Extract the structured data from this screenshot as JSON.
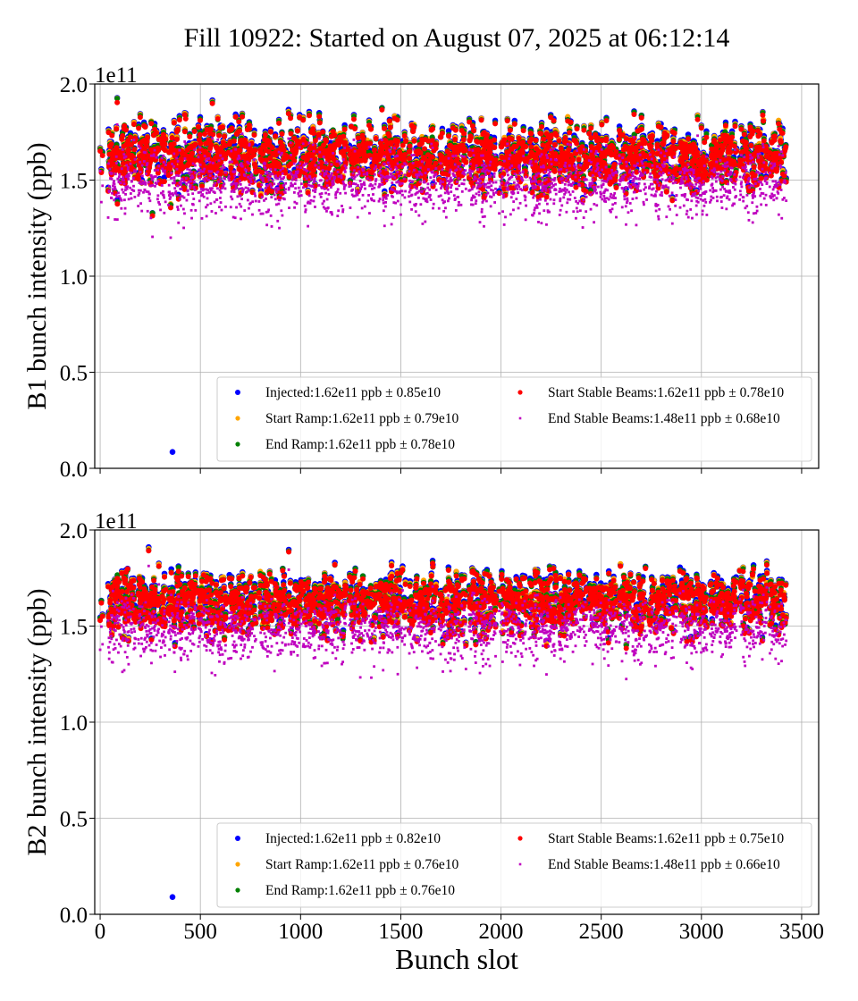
{
  "chart_data": {
    "title": "Fill 10922: Started on August 07, 2025 at 06:12:14",
    "xlabel": "Bunch slot",
    "type": "scatter",
    "x_ticks": [
      "0",
      "500",
      "1000",
      "1500",
      "2000",
      "2500",
      "3000",
      "3500"
    ],
    "xlim": [
      -27,
      3585
    ],
    "grid": true,
    "legend_placement": "lower-right",
    "panels": [
      {
        "ylabel": "B1 bunch intensity (ppb)",
        "y_scale_label": "1e11",
        "ylim": [
          0,
          2.0
        ],
        "y_ticks": [
          "0.0",
          "0.5",
          "1.0",
          "1.5",
          "2.0"
        ],
        "series": [
          {
            "name": "Injected",
            "legend": "Injected:1.62e11 ppb ± 0.85e10",
            "mean": 1.62,
            "std": 0.085,
            "color": "#0000ff",
            "outliers": [
              {
                "x": 361,
                "y": 0.085
              }
            ]
          },
          {
            "name": "Start Ramp",
            "legend": "Start Ramp:1.62e11 ppb ± 0.79e10",
            "mean": 1.62,
            "std": 0.079,
            "color": "#ffa500"
          },
          {
            "name": "End Ramp",
            "legend": "End Ramp:1.62e11 ppb ± 0.78e10",
            "mean": 1.62,
            "std": 0.078,
            "color": "#008000"
          },
          {
            "name": "Start Stable Beams",
            "legend": "Start Stable Beams:1.62e11 ppb ± 0.78e10",
            "mean": 1.62,
            "std": 0.078,
            "color": "#ff0000"
          },
          {
            "name": "End Stable Beams",
            "legend": "End Stable Beams:1.48e11 ppb ± 0.68e10",
            "mean": 1.48,
            "std": 0.068,
            "color": "#bf00bf"
          }
        ]
      },
      {
        "ylabel": "B2 bunch intensity (ppb)",
        "y_scale_label": "1e11",
        "ylim": [
          0,
          2.0
        ],
        "y_ticks": [
          "0.0",
          "0.5",
          "1.0",
          "1.5",
          "2.0"
        ],
        "series": [
          {
            "name": "Injected",
            "legend": "Injected:1.62e11 ppb ± 0.82e10",
            "mean": 1.62,
            "std": 0.082,
            "color": "#0000ff",
            "outliers": [
              {
                "x": 361,
                "y": 0.09
              }
            ]
          },
          {
            "name": "Start Ramp",
            "legend": "Start Ramp:1.62e11 ppb ± 0.76e10",
            "mean": 1.62,
            "std": 0.076,
            "color": "#ffa500"
          },
          {
            "name": "End Ramp",
            "legend": "End Ramp:1.62e11 ppb ± 0.76e10",
            "mean": 1.62,
            "std": 0.076,
            "color": "#008000"
          },
          {
            "name": "Start Stable Beams",
            "legend": "Start Stable Beams:1.62e11 ppb ± 0.75e10",
            "mean": 1.62,
            "std": 0.075,
            "color": "#ff0000"
          },
          {
            "name": "End Stable Beams",
            "legend": "End Stable Beams:1.48e11 ppb ± 0.66e10",
            "mean": 1.48,
            "std": 0.066,
            "color": "#bf00bf"
          }
        ]
      }
    ]
  }
}
